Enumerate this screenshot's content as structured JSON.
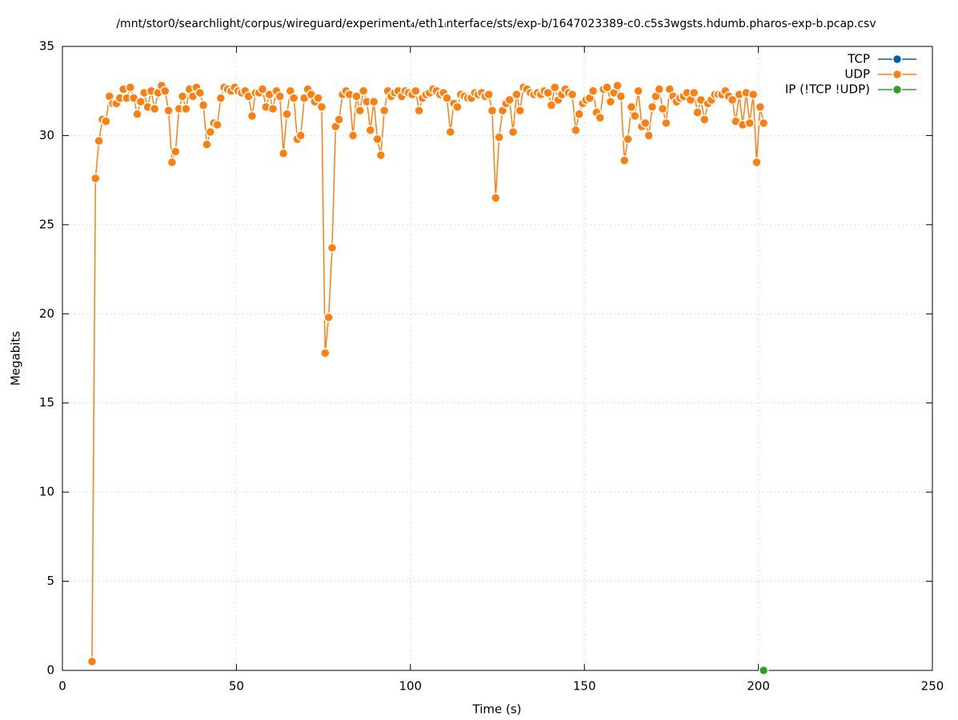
{
  "chart_data": {
    "type": "line",
    "title": "/mnt/stor0/searchlight/corpus/wireguard/experiment₄/eth1ᵢnterface/sts/exp-b/1647023389-c0.c5s3wgsts.hdumb.pharos-exp-b.pcap.csv",
    "xlabel": "Time (s)",
    "ylabel": "Megabits",
    "xlim": [
      0,
      250
    ],
    "xticks": [
      0,
      50,
      100,
      150,
      200,
      250
    ],
    "ylim": [
      0,
      35
    ],
    "yticks": [
      0,
      5,
      10,
      15,
      20,
      25,
      30,
      35
    ],
    "grid": true,
    "legend": "top-right",
    "series": [
      {
        "name": "TCP",
        "color": "#0060ad",
        "x": [],
        "values": []
      },
      {
        "name": "UDP",
        "color": "#ff7f0e",
        "x": [
          8.5,
          9.5,
          10.5,
          11.5,
          12.5,
          13.5,
          14.5,
          15.5,
          16.5,
          17.5,
          18.5,
          19.5,
          20.5,
          21.5,
          22.5,
          23.5,
          24.5,
          25.5,
          26.5,
          27.5,
          28.5,
          29.5,
          30.5,
          31.5,
          32.5,
          33.5,
          34.5,
          35.5,
          36.5,
          37.5,
          38.5,
          39.5,
          40.5,
          41.5,
          42.5,
          43.5,
          44.5,
          45.5,
          46.5,
          47.5,
          48.5,
          49.5,
          50.5,
          51.5,
          52.5,
          53.5,
          54.5,
          55.5,
          56.5,
          57.5,
          58.5,
          59.5,
          60.5,
          61.5,
          62.5,
          63.5,
          64.5,
          65.5,
          66.5,
          67.5,
          68.5,
          69.5,
          70.5,
          71.5,
          72.5,
          73.5,
          74.5,
          75.5,
          76.5,
          77.5,
          78.5,
          79.5,
          80.5,
          81.5,
          82.5,
          83.5,
          84.5,
          85.5,
          86.5,
          87.5,
          88.5,
          89.5,
          90.5,
          91.5,
          92.5,
          93.5,
          94.5,
          95.5,
          96.5,
          97.5,
          98.5,
          99.5,
          100.5,
          101.5,
          102.5,
          103.5,
          104.5,
          105.5,
          106.5,
          107.5,
          108.5,
          109.5,
          110.5,
          111.5,
          112.5,
          113.5,
          114.5,
          115.5,
          116.5,
          117.5,
          118.5,
          119.5,
          120.5,
          121.5,
          122.5,
          123.5,
          124.5,
          125.5,
          126.5,
          127.5,
          128.5,
          129.5,
          130.5,
          131.5,
          132.5,
          133.5,
          134.5,
          135.5,
          136.5,
          137.5,
          138.5,
          139.5,
          140.5,
          141.5,
          142.5,
          143.5,
          144.5,
          145.5,
          146.5,
          147.5,
          148.5,
          149.5,
          150.5,
          151.5,
          152.5,
          153.5,
          154.5,
          155.5,
          156.5,
          157.5,
          158.5,
          159.5,
          160.5,
          161.5,
          162.5,
          163.5,
          164.5,
          165.5,
          166.5,
          167.5,
          168.5,
          169.5,
          170.5,
          171.5,
          172.5,
          173.5,
          174.5,
          175.5,
          176.5,
          177.5,
          178.5,
          179.5,
          180.5,
          181.5,
          182.5,
          183.5,
          184.5,
          185.5,
          186.5,
          187.5,
          188.5,
          189.5,
          190.5,
          191.5,
          192.5,
          193.5,
          194.5,
          195.5,
          196.5,
          197.5,
          198.5,
          199.5,
          200.5,
          201.5
        ],
        "values": [
          0.5,
          27.6,
          29.7,
          30.9,
          30.8,
          32.2,
          31.8,
          31.8,
          32.1,
          32.6,
          32.1,
          32.7,
          32.1,
          31.2,
          31.9,
          32.4,
          31.6,
          32.5,
          31.5,
          32.4,
          32.8,
          32.5,
          31.4,
          28.5,
          29.1,
          31.5,
          32.2,
          31.5,
          32.6,
          32.2,
          32.7,
          32.4,
          31.7,
          29.5,
          30.2,
          30.7,
          30.6,
          32.1,
          32.7,
          32.6,
          32.5,
          32.7,
          32.5,
          32.4,
          32.5,
          32.2,
          31.1,
          32.4,
          32.4,
          32.6,
          31.6,
          32.3,
          31.5,
          32.5,
          32.2,
          29.0,
          31.2,
          32.5,
          32.1,
          29.8,
          30.0,
          32.1,
          32.6,
          32.3,
          31.9,
          32.1,
          31.6,
          17.8,
          19.8,
          23.7,
          30.5,
          30.9,
          32.3,
          32.5,
          32.3,
          30.0,
          32.2,
          31.4,
          32.5,
          31.9,
          30.3,
          31.9,
          29.8,
          28.9,
          31.4,
          32.5,
          32.2,
          32.4,
          32.5,
          32.2,
          32.5,
          32.4,
          32.3,
          32.5,
          31.4,
          32.1,
          32.3,
          32.4,
          32.6,
          32.5,
          32.3,
          32.4,
          32.1,
          30.2,
          31.8,
          31.6,
          32.3,
          32.2,
          32.1,
          32.1,
          32.4,
          32.3,
          32.4,
          32.2,
          32.3,
          31.4,
          26.5,
          29.9,
          31.4,
          31.8,
          32.0,
          30.2,
          32.3,
          31.4,
          32.7,
          32.6,
          32.4,
          32.3,
          32.4,
          32.3,
          32.5,
          32.4,
          31.7,
          32.7,
          32.0,
          32.3,
          32.6,
          32.4,
          32.3,
          30.3,
          31.2,
          31.8,
          32.0,
          32.1,
          32.5,
          31.3,
          31.0,
          32.6,
          32.7,
          31.9,
          32.4,
          32.8,
          32.2,
          28.6,
          29.8,
          31.6,
          31.1,
          32.5,
          30.5,
          30.7,
          30.0,
          31.6,
          32.2,
          32.6,
          31.5,
          30.7,
          32.6,
          32.2,
          31.9,
          32.1,
          32.2,
          32.4,
          32.0,
          32.4,
          31.3,
          32.0,
          30.9,
          31.8,
          32.0,
          32.3,
          32.3,
          32.3,
          32.5,
          32.2,
          32.0,
          30.8,
          32.3,
          30.6,
          32.4,
          30.7,
          32.3,
          28.5,
          31.6,
          30.7
        ]
      },
      {
        "name": "IP (!TCP  !UDP)",
        "color": "#2ca02c",
        "x": [
          201.5
        ],
        "values": [
          0
        ]
      }
    ]
  }
}
